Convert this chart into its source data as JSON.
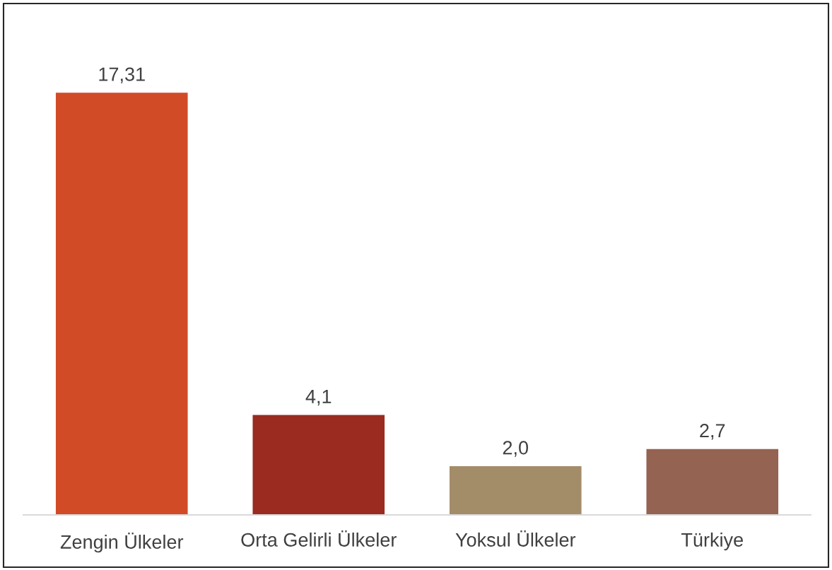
{
  "chart_data": {
    "type": "bar",
    "categories": [
      "Zengin Ülkeler",
      "Orta Gelirli Ülkeler",
      "Yoksul Ülkeler",
      "Türkiye"
    ],
    "values": [
      17.31,
      4.1,
      2.0,
      2.7
    ],
    "colors": [
      "#d24b27",
      "#9b2a20",
      "#a38c68",
      "#956351"
    ],
    "value_labels": [
      "17,31",
      "4,1",
      "2,0",
      "2,7"
    ],
    "tick_labels": "x"
  }
}
